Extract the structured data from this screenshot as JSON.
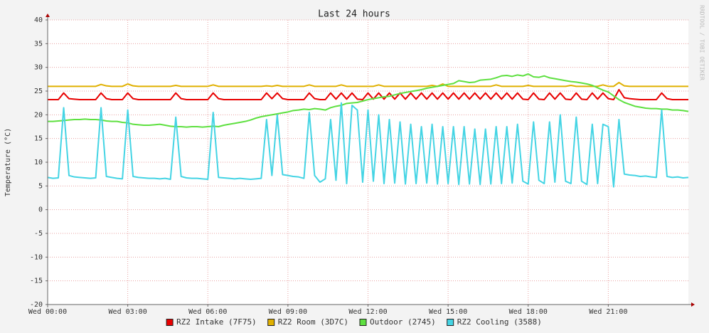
{
  "chart_data": {
    "type": "line",
    "title": "Last 24 hours",
    "y_label": "Temperature (°C)",
    "watermark": "RRDTOOL / TOBI OETIKER",
    "x": [
      0,
      0.2,
      0.4,
      0.6,
      0.8,
      1,
      1.2,
      1.4,
      1.6,
      1.8,
      2,
      2.2,
      2.4,
      2.6,
      2.8,
      3,
      3.2,
      3.4,
      3.6,
      3.8,
      4,
      4.2,
      4.4,
      4.6,
      4.8,
      5,
      5.2,
      5.4,
      5.6,
      5.8,
      6,
      6.2,
      6.4,
      6.6,
      6.8,
      7,
      7.2,
      7.4,
      7.6,
      7.8,
      8,
      8.2,
      8.4,
      8.6,
      8.8,
      9,
      9.2,
      9.4,
      9.6,
      9.8,
      10,
      10.2,
      10.4,
      10.6,
      10.8,
      11,
      11.2,
      11.4,
      11.6,
      11.8,
      12,
      12.2,
      12.4,
      12.6,
      12.8,
      13,
      13.2,
      13.4,
      13.6,
      13.8,
      14,
      14.2,
      14.4,
      14.6,
      14.8,
      15,
      15.2,
      15.4,
      15.6,
      15.8,
      16,
      16.2,
      16.4,
      16.6,
      16.8,
      17,
      17.2,
      17.4,
      17.6,
      17.8,
      18,
      18.2,
      18.4,
      18.6,
      18.8,
      19,
      19.2,
      19.4,
      19.6,
      19.8,
      20,
      20.2,
      20.4,
      20.6,
      20.8,
      21,
      21.2,
      21.4,
      21.6,
      21.8,
      22,
      22.2,
      22.4,
      22.6,
      22.8,
      23,
      23.2,
      23.4,
      23.6,
      23.8,
      24
    ],
    "xlim": [
      0,
      24
    ],
    "xticks": [
      {
        "value": 0,
        "label": "Wed 00:00"
      },
      {
        "value": 3,
        "label": "Wed 03:00"
      },
      {
        "value": 6,
        "label": "Wed 06:00"
      },
      {
        "value": 9,
        "label": "Wed 09:00"
      },
      {
        "value": 12,
        "label": "Wed 12:00"
      },
      {
        "value": 15,
        "label": "Wed 15:00"
      },
      {
        "value": 18,
        "label": "Wed 18:00"
      },
      {
        "value": 21,
        "label": "Wed 21:00"
      }
    ],
    "ylim": [
      -20,
      40
    ],
    "yticks": [
      -20,
      -15,
      -10,
      -5,
      0,
      5,
      10,
      15,
      20,
      25,
      30,
      35,
      40
    ],
    "grid": true,
    "series": [
      {
        "name": "RZ2 Intake (7F75)",
        "color": "#e80000",
        "values": [
          23.2,
          23.2,
          23.2,
          24.6,
          23.4,
          23.3,
          23.2,
          23.2,
          23.2,
          23.2,
          24.6,
          23.4,
          23.2,
          23.2,
          23.2,
          24.6,
          23.4,
          23.2,
          23.2,
          23.2,
          23.2,
          23.2,
          23.2,
          23.2,
          24.6,
          23.4,
          23.2,
          23.2,
          23.2,
          23.2,
          23.2,
          24.6,
          23.4,
          23.2,
          23.2,
          23.2,
          23.2,
          23.2,
          23.2,
          23.2,
          23.2,
          24.6,
          23.4,
          24.6,
          23.4,
          23.2,
          23.2,
          23.2,
          23.2,
          24.6,
          23.4,
          23.2,
          23.2,
          24.6,
          23.3,
          24.6,
          23.3,
          24.6,
          23.3,
          23.2,
          24.6,
          23.3,
          24.6,
          23.3,
          24.6,
          23.3,
          24.6,
          23.3,
          24.6,
          23.3,
          24.6,
          23.3,
          24.6,
          23.3,
          24.6,
          23.3,
          24.6,
          23.3,
          24.6,
          23.3,
          24.6,
          23.3,
          24.6,
          23.3,
          24.6,
          23.3,
          24.6,
          23.3,
          24.6,
          23.3,
          23.2,
          24.6,
          23.3,
          23.2,
          24.6,
          23.3,
          24.6,
          23.3,
          23.2,
          24.6,
          23.3,
          23.2,
          24.6,
          23.3,
          24.6,
          23.4,
          23.2,
          25.3,
          23.6,
          23.4,
          23.3,
          23.2,
          23.2,
          23.2,
          23.2,
          24.6,
          23.4,
          23.2,
          23.2,
          23.2,
          23.2
        ]
      },
      {
        "name": "RZ2 Room (3D7C)",
        "color": "#e0b000",
        "values": [
          26.0,
          26.0,
          26.0,
          26.0,
          26.0,
          26.0,
          26.0,
          26.0,
          26.0,
          26.0,
          26.4,
          26.1,
          26.0,
          26.0,
          26.0,
          26.5,
          26.1,
          26.0,
          26.0,
          26.0,
          26.0,
          26.0,
          26.0,
          26.0,
          26.2,
          26.0,
          26.0,
          26.0,
          26.0,
          26.0,
          26.0,
          26.3,
          26.0,
          26.0,
          26.0,
          26.0,
          26.0,
          26.0,
          26.0,
          26.0,
          26.0,
          26.1,
          26.0,
          26.2,
          26.0,
          26.0,
          26.0,
          26.0,
          26.0,
          26.3,
          26.0,
          26.0,
          26.0,
          26.0,
          26.0,
          26.3,
          26.0,
          26.0,
          26.0,
          26.0,
          26.0,
          26.0,
          26.3,
          26.0,
          26.0,
          26.0,
          26.0,
          26.0,
          26.0,
          26.0,
          26.0,
          26.0,
          26.2,
          26.0,
          26.5,
          26.0,
          26.0,
          26.0,
          26.0,
          26.0,
          26.0,
          26.0,
          26.0,
          26.0,
          26.3,
          26.0,
          26.0,
          26.0,
          26.0,
          26.0,
          26.2,
          26.0,
          26.0,
          26.0,
          26.0,
          26.0,
          26.0,
          26.0,
          26.2,
          26.0,
          26.0,
          26.0,
          26.0,
          26.0,
          26.3,
          26.0,
          26.0,
          26.8,
          26.1,
          26.0,
          26.0,
          26.0,
          26.0,
          26.0,
          26.0,
          26.0,
          26.0,
          26.0,
          26.0,
          26.0,
          26.0
        ]
      },
      {
        "name": "Outdoor (2745)",
        "color": "#5ee040",
        "values": [
          18.6,
          18.6,
          18.7,
          18.8,
          18.9,
          19.0,
          19.0,
          19.1,
          19.0,
          19.0,
          18.9,
          18.7,
          18.6,
          18.6,
          18.4,
          18.3,
          18.0,
          17.9,
          17.8,
          17.8,
          17.9,
          18.0,
          17.8,
          17.6,
          17.5,
          17.5,
          17.4,
          17.5,
          17.5,
          17.4,
          17.5,
          17.6,
          17.5,
          17.8,
          18.0,
          18.2,
          18.4,
          18.6,
          18.9,
          19.3,
          19.6,
          19.8,
          20.0,
          20.2,
          20.4,
          20.6,
          20.9,
          21.0,
          21.2,
          21.1,
          21.3,
          21.2,
          21.0,
          21.5,
          21.8,
          22.0,
          22.4,
          22.5,
          22.6,
          22.9,
          23.2,
          23.4,
          23.6,
          23.8,
          23.9,
          24.2,
          24.5,
          24.7,
          24.9,
          25.1,
          25.3,
          25.6,
          25.8,
          26.0,
          26.2,
          26.4,
          26.6,
          27.2,
          27.0,
          26.8,
          26.9,
          27.3,
          27.4,
          27.5,
          27.8,
          28.2,
          28.3,
          28.1,
          28.4,
          28.2,
          28.6,
          28.0,
          27.9,
          28.2,
          27.8,
          27.6,
          27.4,
          27.2,
          27.0,
          26.9,
          26.7,
          26.5,
          26.2,
          25.7,
          25.2,
          24.8,
          24.0,
          23.2,
          22.6,
          22.2,
          21.8,
          21.6,
          21.4,
          21.3,
          21.3,
          21.2,
          21.2,
          21.0,
          21.0,
          20.9,
          20.7
        ]
      },
      {
        "name": "RZ2 Cooling (3588)",
        "color": "#44d4e4",
        "values": [
          6.8,
          6.6,
          6.7,
          21.5,
          7.2,
          6.9,
          6.8,
          6.7,
          6.6,
          6.7,
          21.5,
          7.0,
          6.8,
          6.6,
          6.5,
          21,
          7.0,
          6.8,
          6.7,
          6.6,
          6.6,
          6.5,
          6.6,
          6.4,
          19.5,
          7.0,
          6.7,
          6.6,
          6.6,
          6.5,
          6.4,
          20.5,
          6.8,
          6.7,
          6.6,
          6.5,
          6.6,
          6.5,
          6.4,
          6.5,
          6.6,
          19,
          7.2,
          20,
          7.4,
          7.2,
          7.0,
          6.9,
          6.6,
          20.5,
          7.2,
          5.8,
          6.5,
          19,
          6.2,
          22.5,
          5.5,
          22,
          21,
          5.8,
          21,
          6.0,
          20,
          5.5,
          19,
          5.6,
          18.5,
          5.4,
          18,
          5.5,
          17.5,
          5.6,
          18,
          5.4,
          17.5,
          5.5,
          17.5,
          5.3,
          17.5,
          5.4,
          17,
          5.3,
          17,
          5.4,
          17.5,
          5.5,
          17.5,
          5.6,
          18,
          6.0,
          5.4,
          18.5,
          6.2,
          5.5,
          18.5,
          5.8,
          20,
          6.0,
          5.5,
          19.5,
          6.0,
          5.3,
          18,
          5.5,
          18,
          17.5,
          4.8,
          19,
          7.5,
          7.3,
          7.2,
          7.0,
          7.1,
          6.9,
          6.8,
          21,
          7.0,
          6.8,
          6.9,
          6.7,
          6.8
        ]
      }
    ]
  }
}
